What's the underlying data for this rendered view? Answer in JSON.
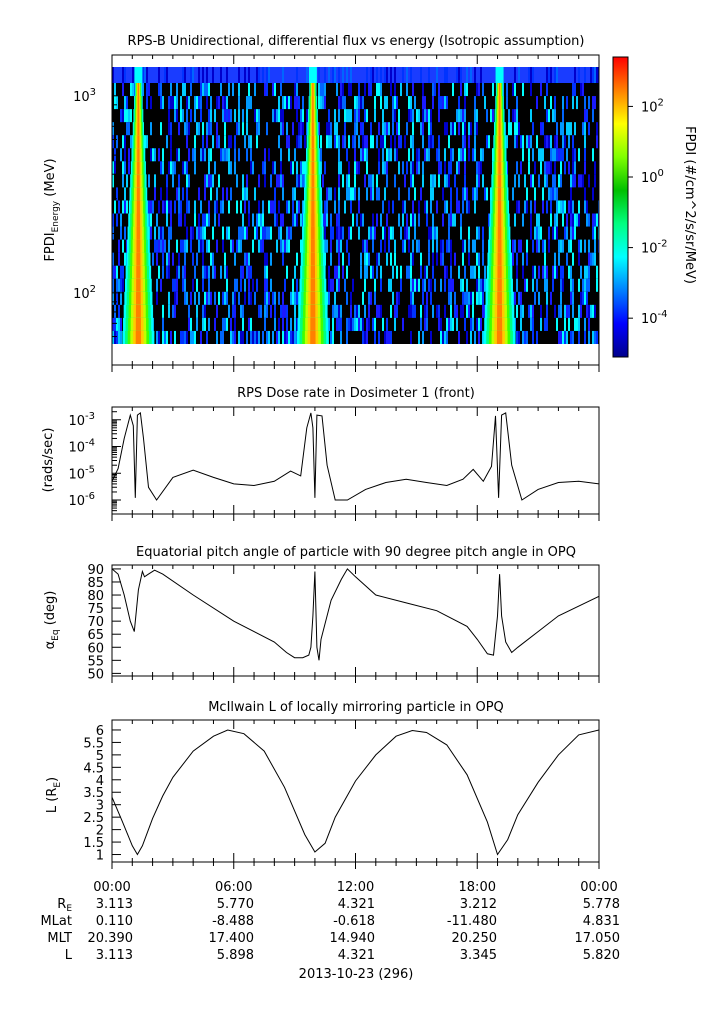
{
  "chart_data": [
    {
      "type": "heatmap",
      "title": "RPS-B  Unidirectional, differential flux vs energy (Isotropic assumption)",
      "ylabel_main": "FPDI",
      "ylabel_sub": "Energy",
      "ylabel_unit": "(MeV)",
      "yscale": "log",
      "ylim": [
        55,
        1400
      ],
      "y_ticks": [
        {
          "value": 100,
          "base": "10",
          "exp": "2"
        },
        {
          "value": 1000,
          "base": "10",
          "exp": "3"
        }
      ],
      "bright_bands_hours": [
        1.3,
        9.9,
        19.1
      ],
      "colorbar": {
        "label": "FPDI (#/cm^2/s/sr/MeV)",
        "scale": "log",
        "range": [
          -5.1,
          3.4
        ],
        "ticks": [
          {
            "base": "10",
            "exp": "2",
            "value": 2
          },
          {
            "base": "10",
            "exp": "0",
            "value": 0
          },
          {
            "base": "10",
            "exp": "-2",
            "value": -2
          },
          {
            "base": "10",
            "exp": "-4",
            "value": -4
          }
        ],
        "colors": [
          "#00008b",
          "#0000ff",
          "#0080ff",
          "#00ffff",
          "#00ff80",
          "#00c000",
          "#80ff00",
          "#ffff00",
          "#ff8000",
          "#ff0000"
        ]
      }
    },
    {
      "type": "line",
      "title": "RPS  Dose rate in Dosimeter 1 (front)",
      "ylabel": "(rads/sec)",
      "yscale": "log",
      "ylim": [
        3e-07,
        0.003
      ],
      "y_ticks": [
        {
          "value": 0.001,
          "base": "10",
          "exp": "-3"
        },
        {
          "value": 0.0001,
          "base": "10",
          "exp": "-4"
        },
        {
          "value": 1e-05,
          "base": "10",
          "exp": "-5"
        },
        {
          "value": 1e-06,
          "base": "10",
          "exp": "-6"
        }
      ],
      "x_hours": [
        0,
        0.3,
        0.6,
        0.9,
        1.05,
        1.15,
        1.25,
        1.4,
        1.55,
        1.8,
        2.2,
        3,
        4,
        5,
        6,
        7,
        8,
        8.8,
        9.3,
        9.6,
        9.8,
        9.9,
        10,
        10.1,
        10.35,
        10.6,
        11,
        11.6,
        12.5,
        13.5,
        14.5,
        15.5,
        16.5,
        17.3,
        17.8,
        18.3,
        18.7,
        18.9,
        19.05,
        19.2,
        19.4,
        19.7,
        20.2,
        21,
        22,
        23,
        24
      ],
      "y_values": [
        5e-06,
        1.5e-05,
        0.0002,
        0.0015,
        0.0006,
        1.2e-06,
        0.0015,
        0.0018,
        0.0002,
        3e-06,
        1e-06,
        7e-06,
        1.3e-05,
        7e-06,
        4e-06,
        3.5e-06,
        5e-06,
        1.2e-05,
        8e-06,
        0.0005,
        0.0018,
        0.0005,
        1.2e-06,
        0.0015,
        0.0014,
        2e-05,
        1e-06,
        1e-06,
        2.5e-06,
        4.5e-06,
        6e-06,
        4.5e-06,
        3.5e-06,
        6e-06,
        1.4e-05,
        5e-06,
        1.8e-05,
        0.0014,
        1.2e-06,
        0.0015,
        0.0018,
        2e-05,
        1e-06,
        2.5e-06,
        4.5e-06,
        5e-06,
        4e-06
      ]
    },
    {
      "type": "line",
      "title": "Equatorial pitch angle of particle with 90 degree pitch angle in OPQ",
      "ylabel_main": "α",
      "ylabel_sub": "Eq",
      "ylabel_unit": "(deg)",
      "ylim": [
        49,
        91.5
      ],
      "y_ticks": [
        50,
        55,
        60,
        65,
        70,
        75,
        80,
        85,
        90
      ],
      "x_hours": [
        0,
        0.3,
        0.6,
        0.9,
        1.1,
        1.3,
        1.5,
        1.6,
        1.8,
        2.1,
        2.5,
        4,
        6,
        8,
        8.6,
        9,
        9.4,
        9.7,
        9.8,
        9.9,
        10,
        10.1,
        10.2,
        10.3,
        10.8,
        11.3,
        11.6,
        12,
        13,
        14.5,
        16,
        17.5,
        18,
        18.5,
        18.8,
        19,
        19.1,
        19.2,
        19.4,
        19.7,
        20,
        21,
        22,
        24
      ],
      "y_values": [
        90,
        88,
        80,
        70,
        66,
        82,
        89,
        87,
        88,
        89.5,
        88,
        80,
        70,
        62,
        58,
        56,
        56,
        57,
        60,
        72,
        89,
        60,
        55,
        63,
        78,
        86,
        90,
        87,
        80,
        77,
        74,
        68,
        63,
        57.5,
        57,
        72,
        88,
        72,
        62,
        58,
        60,
        66,
        72,
        79.5
      ]
    },
    {
      "type": "line",
      "title": "McIlwain L of locally mirroring particle in OPQ",
      "ylabel_main": "L (R",
      "ylabel_sub": "E",
      "ylabel_end": ")",
      "ylim": [
        0.7,
        6.4
      ],
      "y_ticks": [
        1,
        1.5,
        2,
        2.5,
        3,
        3.5,
        4,
        4.5,
        5,
        5.5,
        6
      ],
      "x_hours": [
        0,
        0.5,
        1,
        1.25,
        1.5,
        2,
        2.5,
        3,
        4,
        5,
        5.7,
        6.5,
        7.5,
        8.5,
        9.5,
        10,
        10.5,
        11,
        12,
        13,
        14,
        14.8,
        15.5,
        16.5,
        17.5,
        18.5,
        19,
        19.5,
        20,
        21,
        22,
        23,
        24
      ],
      "y_values": [
        3.3,
        2.35,
        1.35,
        1.0,
        1.35,
        2.45,
        3.35,
        4.1,
        5.15,
        5.75,
        6.0,
        5.85,
        5.15,
        3.7,
        1.8,
        1.1,
        1.45,
        2.5,
        3.95,
        5.0,
        5.75,
        5.98,
        5.9,
        5.4,
        4.2,
        2.3,
        1.0,
        1.6,
        2.6,
        3.9,
        5.0,
        5.8,
        6.0
      ]
    }
  ],
  "x_axis": {
    "tick_labels": [
      "00:00",
      "06:00",
      "12:00",
      "18:00",
      "00:00"
    ],
    "tick_hours": [
      0,
      6,
      12,
      18,
      24
    ],
    "date_label": "2013-10-23 (296)"
  },
  "ephemeris": {
    "row_labels": [
      {
        "main": "R",
        "sub": "E"
      },
      {
        "main": "MLat",
        "sub": ""
      },
      {
        "main": "MLT",
        "sub": ""
      },
      {
        "main": "L",
        "sub": ""
      }
    ],
    "rows": [
      [
        "3.113",
        "5.770",
        "4.321",
        "3.212",
        "5.778"
      ],
      [
        "0.110",
        "-8.488",
        "-0.618",
        "-11.480",
        "4.831"
      ],
      [
        "20.390",
        "17.400",
        "14.940",
        "20.250",
        "17.050"
      ],
      [
        "3.113",
        "5.898",
        "4.321",
        "3.345",
        "5.820"
      ]
    ]
  }
}
